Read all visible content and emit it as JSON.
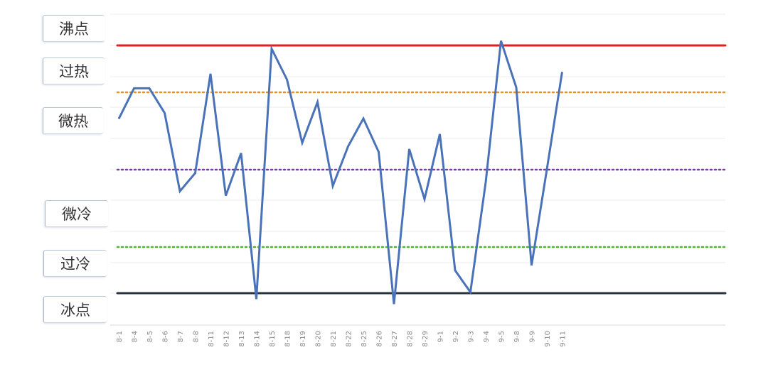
{
  "chart_data": {
    "type": "line",
    "title": "",
    "xlabel": "",
    "ylabel": "",
    "categories": [
      "8-1",
      "8-4",
      "8-5",
      "8-6",
      "8-7",
      "8-8",
      "8-11",
      "8-12",
      "8-13",
      "8-14",
      "8-15",
      "8-18",
      "8-19",
      "8-20",
      "8-21",
      "8-22",
      "8-25",
      "8-26",
      "8-27",
      "8-28",
      "8-29",
      "9-1",
      "9-2",
      "9-3",
      "9-4",
      "9-5",
      "9-8",
      "9-9",
      "9-10",
      "9-11"
    ],
    "series": [
      {
        "values": [
          64.8,
          75.2,
          75.2,
          66.8,
          40.1,
          46.3,
          80.2,
          38.6,
          53.1,
          3.3,
          88.7,
          78.2,
          56.6,
          70.5,
          41.9,
          55.4,
          64.9,
          53.5,
          1.6,
          54.5,
          37.4,
          59.6,
          13.1,
          5.7,
          43.1,
          91.4,
          75.5,
          14.8,
          47.5,
          80.8
        ],
        "color": "#4a72b8"
      }
    ],
    "levels": [
      {
        "label": "沸点",
        "value": 100,
        "color": null
      },
      {
        "label": "过热",
        "value": 85,
        "color": "#e02020"
      },
      {
        "label": "微热",
        "value": 75,
        "color": "#e8922c"
      },
      {
        "label": "微冷",
        "value": 50,
        "color": "#7b3aa0"
      },
      {
        "label": "过冷",
        "value": 25,
        "color": "#4fb42d"
      },
      {
        "label": "冰点",
        "value": 5,
        "color": "#2a3341"
      }
    ],
    "ylim": [
      0,
      100
    ],
    "grid": true
  }
}
